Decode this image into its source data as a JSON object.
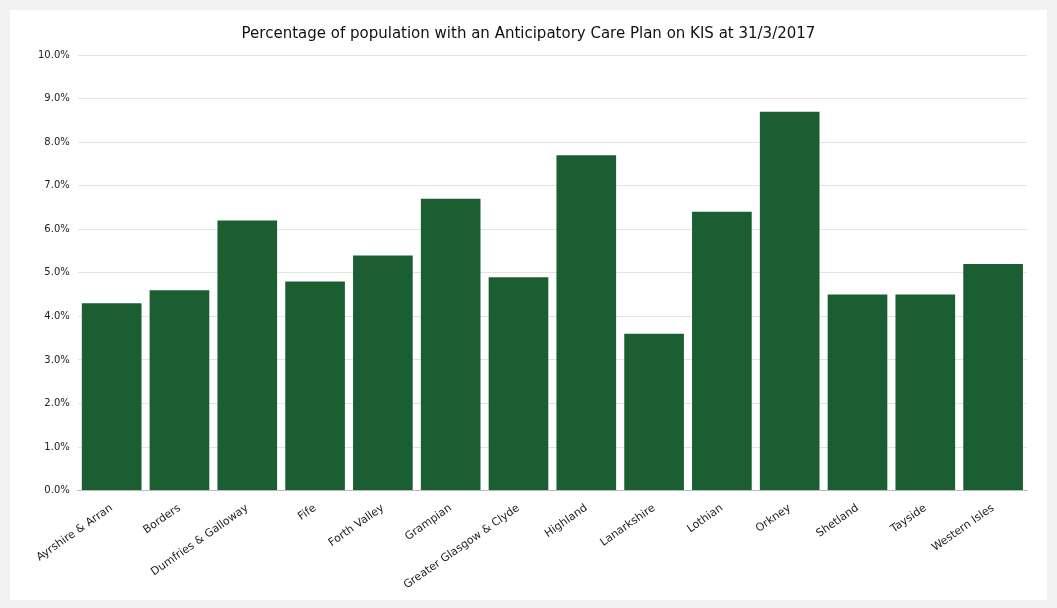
{
  "chart_data": {
    "type": "bar",
    "title": "Percentage of population with an Anticipatory Care Plan on KIS at 31/3/2017",
    "categories": [
      "Ayrshire & Arran",
      "Borders",
      "Dumfries & Galloway",
      "Fife",
      "Forth Valley",
      "Grampian",
      "Greater Glasgow & Clyde",
      "Highland",
      "Lanarkshire",
      "Lothian",
      "Orkney",
      "Shetland",
      "Tayside",
      "Western Isles"
    ],
    "values": [
      4.3,
      4.6,
      6.2,
      4.8,
      5.4,
      6.7,
      4.9,
      7.7,
      3.6,
      6.4,
      8.7,
      4.5,
      4.5,
      5.2
    ],
    "color": "#1a5e32",
    "ylim": [
      0,
      10
    ],
    "yticks": [
      {
        "value": 0,
        "label": "0.0%"
      },
      {
        "value": 1,
        "label": "1.0%"
      },
      {
        "value": 2,
        "label": "2.0%"
      },
      {
        "value": 3,
        "label": "3.0%"
      },
      {
        "value": 4,
        "label": "4.0%"
      },
      {
        "value": 5,
        "label": "5.0%"
      },
      {
        "value": 6,
        "label": "6.0%"
      },
      {
        "value": 7,
        "label": "7.0%"
      },
      {
        "value": 8,
        "label": "8.0%"
      },
      {
        "value": 9,
        "label": "9.0%"
      },
      {
        "value": 10,
        "label": "10.0%"
      }
    ],
    "grid": "y",
    "legend": false
  }
}
